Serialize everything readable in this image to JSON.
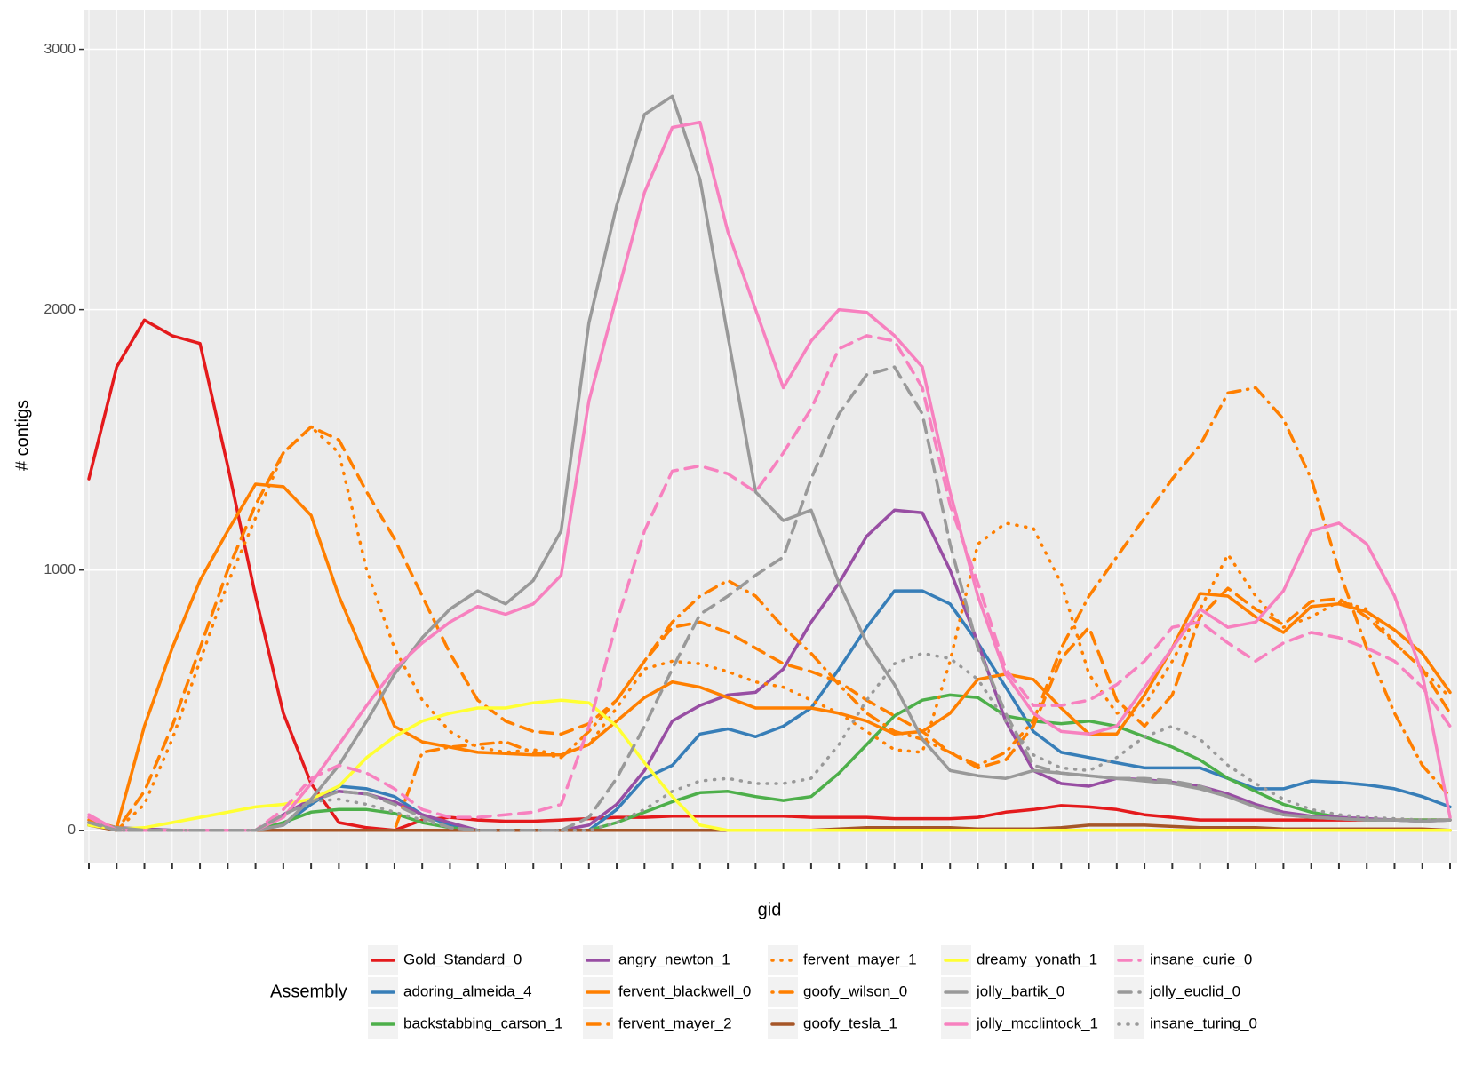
{
  "chart_data": {
    "type": "line",
    "x_label": "gid",
    "y_label": "# contigs",
    "legend_title": "Assembly",
    "legend": "bottom",
    "grid": true,
    "categories": [
      null,
      null,
      null,
      null,
      null,
      null,
      null,
      null,
      null,
      null,
      null,
      null,
      null,
      null,
      null,
      null,
      null,
      null,
      null,
      null,
      null,
      null,
      null,
      null,
      null,
      null,
      null,
      null,
      null,
      null,
      null,
      null,
      null,
      null,
      null,
      null,
      null,
      null,
      null,
      null,
      null,
      null,
      null,
      null,
      null,
      null,
      null,
      null,
      null,
      null
    ],
    "ylim": [
      -127,
      3152
    ],
    "yticks": [
      0,
      1000,
      2000,
      3000
    ],
    "series": [
      {
        "name": "Gold_Standard_0",
        "color": "#e41a1c",
        "dash": "solid",
        "values": [
          1350,
          1780,
          1960,
          1900,
          1870,
          1400,
          900,
          450,
          180,
          30,
          10,
          0,
          40,
          50,
          40,
          35,
          35,
          40,
          45,
          50,
          50,
          55,
          55,
          55,
          55,
          55,
          50,
          50,
          50,
          45,
          45,
          45,
          50,
          70,
          80,
          95,
          90,
          80,
          60,
          50,
          40,
          40,
          40,
          40,
          40,
          40,
          40,
          40,
          40,
          40
        ]
      },
      {
        "name": "adoring_almeida_4",
        "color": "#377eb8",
        "dash": "solid",
        "values": [
          30,
          10,
          5,
          0,
          0,
          0,
          0,
          20,
          100,
          170,
          160,
          130,
          60,
          20,
          0,
          0,
          0,
          0,
          0,
          80,
          200,
          250,
          370,
          390,
          360,
          400,
          470,
          620,
          780,
          920,
          920,
          870,
          720,
          550,
          380,
          300,
          280,
          260,
          240,
          240,
          240,
          200,
          160,
          160,
          190,
          185,
          175,
          160,
          130,
          90
        ]
      },
      {
        "name": "backstabbing_carson_1",
        "color": "#4daf4a",
        "dash": "solid",
        "values": [
          20,
          5,
          0,
          0,
          0,
          0,
          0,
          30,
          70,
          80,
          80,
          65,
          30,
          10,
          0,
          0,
          0,
          0,
          0,
          30,
          70,
          110,
          145,
          150,
          130,
          115,
          130,
          220,
          330,
          440,
          500,
          520,
          510,
          440,
          420,
          410,
          420,
          400,
          360,
          320,
          270,
          200,
          150,
          100,
          70,
          50,
          40,
          40,
          40,
          40
        ]
      },
      {
        "name": "angry_newton_1",
        "color": "#984ea3",
        "dash": "solid",
        "values": [
          40,
          10,
          5,
          0,
          0,
          0,
          0,
          60,
          120,
          150,
          140,
          110,
          60,
          30,
          0,
          0,
          0,
          0,
          20,
          100,
          230,
          420,
          480,
          520,
          530,
          620,
          800,
          950,
          1130,
          1230,
          1220,
          1000,
          720,
          420,
          230,
          180,
          170,
          200,
          195,
          185,
          170,
          140,
          100,
          70,
          55,
          50,
          45,
          40,
          35,
          40
        ]
      },
      {
        "name": "fervent_blackwell_0",
        "color": "#ff7f00",
        "dash": "solid",
        "values": [
          40,
          10,
          400,
          700,
          960,
          1150,
          1330,
          1320,
          1210,
          900,
          650,
          400,
          340,
          320,
          300,
          295,
          290,
          290,
          330,
          420,
          510,
          570,
          550,
          510,
          470,
          470,
          470,
          450,
          420,
          370,
          380,
          450,
          580,
          600,
          580,
          470,
          370,
          370,
          520,
          700,
          910,
          900,
          820,
          760,
          860,
          870,
          840,
          770,
          680,
          530
        ]
      },
      {
        "name": "fervent_mayer_2",
        "color": "#ff7f00",
        "dash": "dashed",
        "values": [
          30,
          0,
          150,
          400,
          700,
          1000,
          1250,
          1450,
          1550,
          1500,
          1300,
          1120,
          900,
          680,
          500,
          420,
          380,
          370,
          410,
          500,
          650,
          780,
          800,
          760,
          700,
          640,
          610,
          570,
          500,
          440,
          380,
          300,
          240,
          270,
          400,
          660,
          780,
          500,
          400,
          520,
          820,
          930,
          850,
          790,
          880,
          890,
          820,
          720,
          620,
          450
        ]
      },
      {
        "name": "fervent_mayer_1",
        "color": "#ff7f00",
        "dash": "dotted",
        "values": [
          30,
          0,
          100,
          350,
          650,
          950,
          1200,
          1450,
          1550,
          1450,
          1000,
          700,
          500,
          380,
          320,
          300,
          310,
          290,
          330,
          470,
          620,
          650,
          640,
          610,
          570,
          550,
          500,
          450,
          380,
          310,
          300,
          650,
          1100,
          1180,
          1160,
          950,
          600,
          450,
          480,
          650,
          850,
          1060,
          900,
          780,
          820,
          880,
          850,
          720,
          620,
          510
        ]
      },
      {
        "name": "goofy_wilson_0",
        "color": "#ff7f00",
        "dash": "dotdash",
        "values": [
          30,
          0,
          0,
          0,
          0,
          0,
          0,
          0,
          0,
          0,
          0,
          0,
          300,
          320,
          330,
          340,
          300,
          280,
          380,
          500,
          650,
          800,
          900,
          960,
          900,
          780,
          680,
          560,
          450,
          380,
          350,
          300,
          250,
          300,
          420,
          700,
          900,
          1050,
          1200,
          1350,
          1480,
          1680,
          1700,
          1580,
          1350,
          1000,
          700,
          450,
          250,
          130
        ]
      },
      {
        "name": "goofy_tesla_1",
        "color": "#a65628",
        "dash": "solid",
        "values": [
          20,
          0,
          0,
          0,
          0,
          0,
          0,
          0,
          0,
          0,
          0,
          0,
          0,
          0,
          0,
          0,
          0,
          0,
          0,
          0,
          0,
          0,
          0,
          0,
          0,
          0,
          0,
          5,
          10,
          10,
          10,
          10,
          5,
          5,
          5,
          10,
          20,
          20,
          20,
          15,
          10,
          10,
          10,
          5,
          5,
          5,
          5,
          5,
          5,
          0
        ]
      },
      {
        "name": "dreamy_yonath_1",
        "color": "#ffff33",
        "dash": "solid",
        "values": [
          20,
          5,
          10,
          30,
          50,
          70,
          90,
          100,
          120,
          170,
          280,
          360,
          420,
          450,
          470,
          470,
          490,
          500,
          490,
          400,
          260,
          130,
          20,
          0,
          0,
          0,
          0,
          0,
          0,
          0,
          0,
          0,
          0,
          0,
          0,
          0,
          0,
          0,
          0,
          0,
          0,
          0,
          0,
          0,
          0,
          0,
          0,
          0,
          0,
          0
        ]
      },
      {
        "name": "jolly_bartik_0",
        "color": "#999999",
        "dash": "solid",
        "values": [
          30,
          10,
          0,
          0,
          0,
          0,
          0,
          20,
          120,
          250,
          420,
          600,
          740,
          850,
          920,
          870,
          960,
          1150,
          1950,
          2400,
          2750,
          2820,
          2500,
          1900,
          1300,
          1190,
          1230,
          950,
          720,
          560,
          350,
          230,
          210,
          200,
          230,
          220,
          210,
          200,
          190,
          180,
          160,
          130,
          90,
          60,
          50,
          45,
          40,
          40,
          35,
          40
        ]
      },
      {
        "name": "jolly_mcclintock_1",
        "color": "#f781bf",
        "dash": "solid",
        "values": [
          60,
          0,
          0,
          0,
          0,
          0,
          0,
          50,
          180,
          330,
          480,
          620,
          720,
          800,
          860,
          830,
          870,
          980,
          1650,
          2050,
          2450,
          2700,
          2720,
          2300,
          2000,
          1700,
          1880,
          2000,
          1990,
          1900,
          1780,
          1300,
          900,
          600,
          450,
          380,
          370,
          400,
          550,
          700,
          850,
          780,
          800,
          920,
          1150,
          1180,
          1100,
          900,
          600,
          50
        ]
      },
      {
        "name": "insane_curie_0",
        "color": "#f781bf",
        "dash": "dashed",
        "values": [
          50,
          0,
          0,
          0,
          0,
          0,
          0,
          80,
          200,
          250,
          220,
          160,
          80,
          50,
          50,
          60,
          70,
          100,
          400,
          800,
          1150,
          1380,
          1400,
          1370,
          1300,
          1450,
          1620,
          1850,
          1900,
          1880,
          1700,
          1250,
          950,
          620,
          480,
          480,
          500,
          560,
          650,
          780,
          800,
          720,
          650,
          720,
          760,
          740,
          700,
          650,
          550,
          400
        ]
      },
      {
        "name": "jolly_euclid_0",
        "color": "#999999",
        "dash": "dashed",
        "values": [
          30,
          0,
          0,
          0,
          0,
          0,
          0,
          60,
          110,
          150,
          140,
          100,
          50,
          10,
          0,
          0,
          0,
          0,
          50,
          200,
          400,
          620,
          830,
          900,
          980,
          1050,
          1350,
          1600,
          1750,
          1780,
          1600,
          1100,
          700,
          450,
          250,
          220,
          210,
          200,
          200,
          190,
          170,
          130,
          90,
          60,
          50,
          45,
          40,
          40,
          35,
          40
        ]
      },
      {
        "name": "insane_turing_0",
        "color": "#999999",
        "dash": "dotted",
        "values": [
          30,
          0,
          0,
          0,
          0,
          0,
          0,
          60,
          110,
          120,
          100,
          70,
          40,
          10,
          0,
          0,
          0,
          0,
          0,
          30,
          80,
          150,
          190,
          200,
          180,
          180,
          200,
          330,
          500,
          640,
          680,
          660,
          580,
          420,
          290,
          240,
          230,
          280,
          360,
          400,
          350,
          250,
          180,
          120,
          80,
          60,
          50,
          45,
          40,
          40
        ]
      }
    ]
  }
}
